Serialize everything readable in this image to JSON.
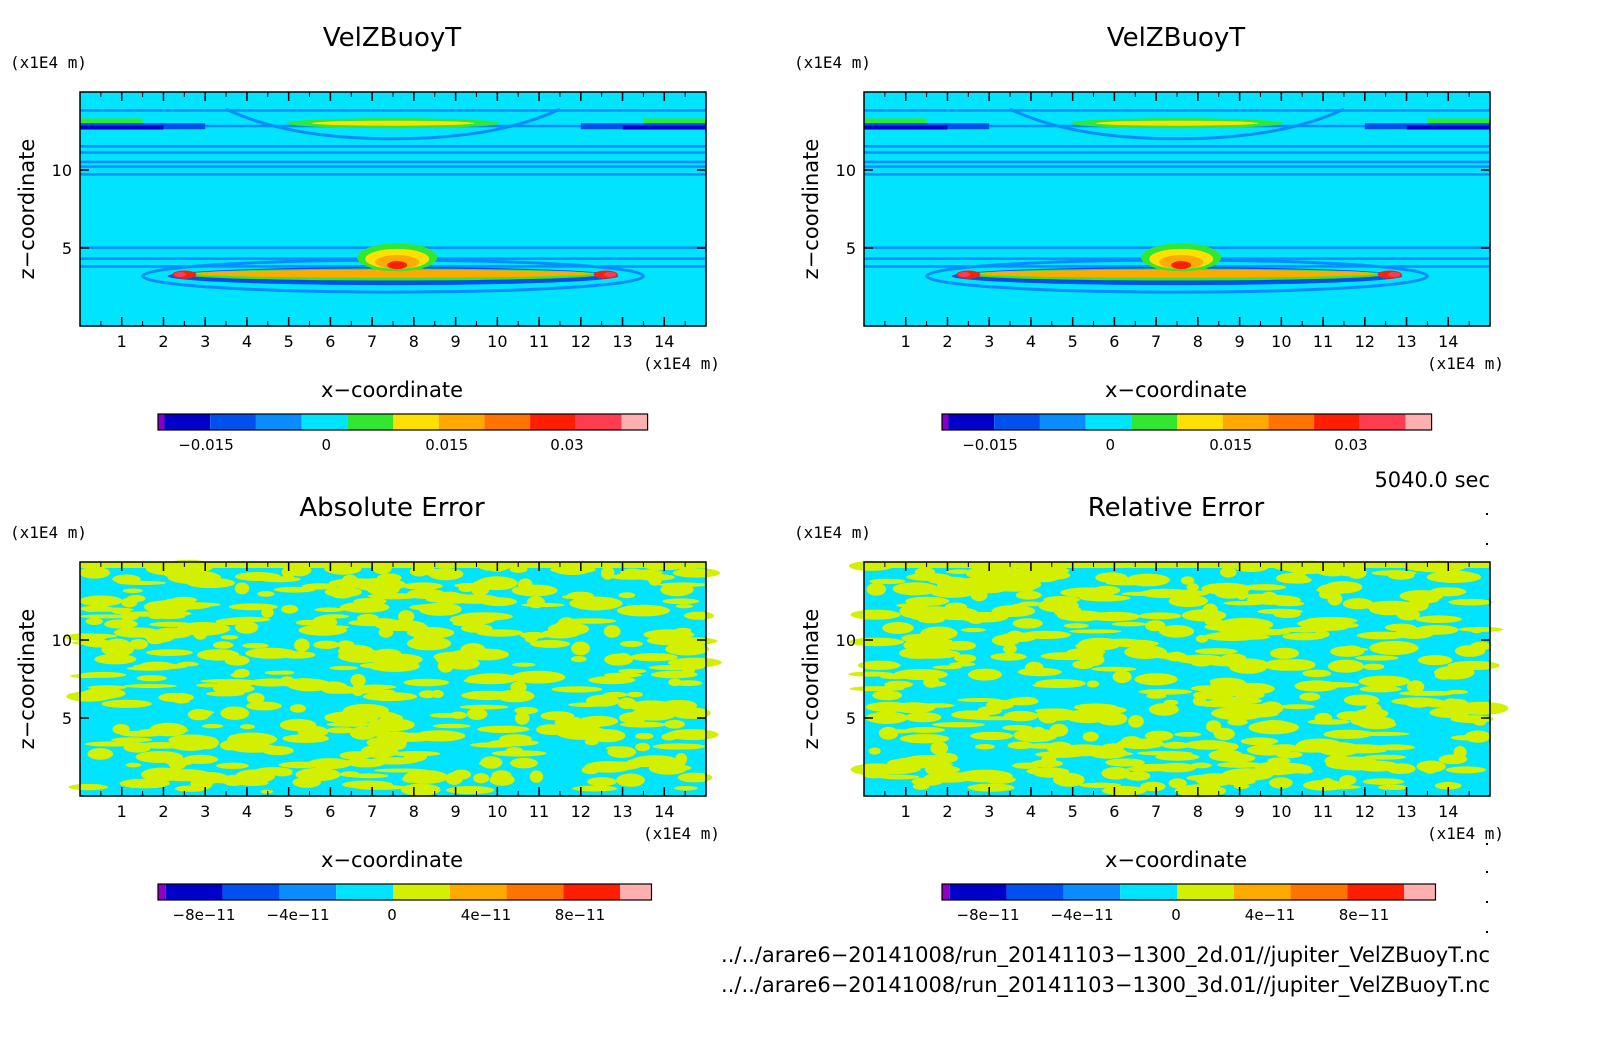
{
  "colors": {
    "background": "#00e4ff",
    "contour_low": "#0a8cff",
    "contour_pos": "#ffe100",
    "noise_fill": "#d2f000"
  },
  "chart_data": [
    {
      "type": "heatmap",
      "title": "VelZBuoyT",
      "xlabel": "x−coordinate",
      "ylabel": "z−coordinate",
      "x_unit": "(x1E4 m)",
      "y_unit": "(x1E4 m)",
      "xlim": [
        0,
        15
      ],
      "ylim": [
        0,
        15
      ],
      "xticks": [
        "1",
        "2",
        "3",
        "4",
        "5",
        "6",
        "7",
        "8",
        "9",
        "10",
        "11",
        "12",
        "13",
        "14"
      ],
      "yticks": [
        "5",
        "10"
      ],
      "colorbar": {
        "colors": [
          "#8000c8",
          "#0000c8",
          "#0050f0",
          "#0a8cff",
          "#00e4ff",
          "#32e632",
          "#ffe100",
          "#ffaa00",
          "#ff7300",
          "#ff1e00",
          "#ff3c50",
          "#ffafaf"
        ],
        "labels": [
          "−0.015",
          "0",
          "0.015",
          "0.03"
        ]
      },
      "pattern": "field"
    },
    {
      "type": "heatmap",
      "title": "VelZBuoyT",
      "xlabel": "x−coordinate",
      "ylabel": "z−coordinate",
      "x_unit": "(x1E4 m)",
      "y_unit": "(x1E4 m)",
      "xlim": [
        0,
        15
      ],
      "ylim": [
        0,
        15
      ],
      "xticks": [
        "1",
        "2",
        "3",
        "4",
        "5",
        "6",
        "7",
        "8",
        "9",
        "10",
        "11",
        "12",
        "13",
        "14"
      ],
      "yticks": [
        "5",
        "10"
      ],
      "colorbar": {
        "colors": [
          "#8000c8",
          "#0000c8",
          "#0050f0",
          "#0a8cff",
          "#00e4ff",
          "#32e632",
          "#ffe100",
          "#ffaa00",
          "#ff7300",
          "#ff1e00",
          "#ff3c50",
          "#ffafaf"
        ],
        "labels": [
          "−0.015",
          "0",
          "0.015",
          "0.03"
        ]
      },
      "pattern": "field"
    },
    {
      "type": "heatmap",
      "title": "Absolute Error",
      "xlabel": "x−coordinate",
      "ylabel": "z−coordinate",
      "x_unit": "(x1E4 m)",
      "y_unit": "(x1E4 m)",
      "xlim": [
        0,
        15
      ],
      "ylim": [
        0,
        15
      ],
      "xticks": [
        "1",
        "2",
        "3",
        "4",
        "5",
        "6",
        "7",
        "8",
        "9",
        "10",
        "11",
        "12",
        "13",
        "14"
      ],
      "yticks": [
        "5",
        "10"
      ],
      "colorbar": {
        "colors": [
          "#8c00c8",
          "#0000c8",
          "#0050f0",
          "#0a8cff",
          "#00e4ff",
          "#d2f000",
          "#ffaa00",
          "#ff7300",
          "#ff1e00",
          "#ffafaf"
        ],
        "labels": [
          "−8e−11",
          "−4e−11",
          "0",
          "4e−11",
          "8e−11"
        ]
      },
      "pattern": "noise",
      "seed": 7
    },
    {
      "type": "heatmap",
      "title": "Relative Error",
      "xlabel": "x−coordinate",
      "ylabel": "z−coordinate",
      "x_unit": "(x1E4 m)",
      "y_unit": "(x1E4 m)",
      "xlim": [
        0,
        15
      ],
      "ylim": [
        0,
        15
      ],
      "xticks": [
        "1",
        "2",
        "3",
        "4",
        "5",
        "6",
        "7",
        "8",
        "9",
        "10",
        "11",
        "12",
        "13",
        "14"
      ],
      "yticks": [
        "5",
        "10"
      ],
      "colorbar": {
        "colors": [
          "#8c00c8",
          "#0000c8",
          "#0050f0",
          "#0a8cff",
          "#00e4ff",
          "#d2f000",
          "#ffaa00",
          "#ff7300",
          "#ff1e00",
          "#ffafaf"
        ],
        "labels": [
          "−8e−11",
          "−4e−11",
          "0",
          "4e−11",
          "8e−11"
        ]
      },
      "pattern": "noise",
      "seed": 23
    }
  ],
  "time_label": "5040.0 sec",
  "files": [
    "../../arare6−20141008/run_20141103−1300_2d.01//jupiter_VelZBuoyT.nc",
    "../../arare6−20141008/run_20141103−1300_3d.01//jupiter_VelZBuoyT.nc"
  ]
}
